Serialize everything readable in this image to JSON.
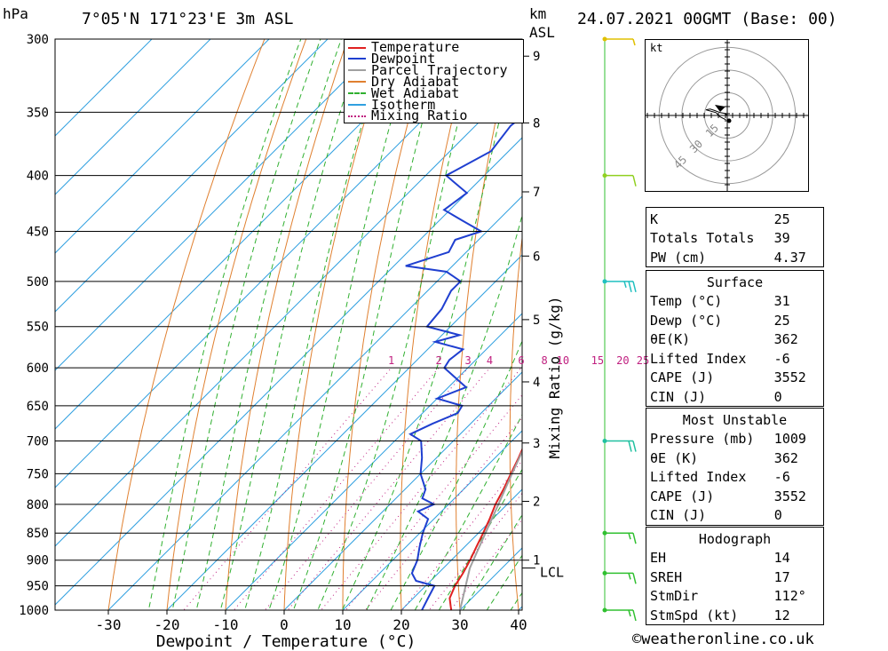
{
  "header": {
    "location": "7°05'N  171°23'E  3m  ASL",
    "pressure_unit": "hPa",
    "km_label": "km",
    "asl_label": "ASL",
    "datetime": "24.07.2021  00GMT  (Base: 00)"
  },
  "chart_data": {
    "type": "line",
    "title": "",
    "xlabel": "Dewpoint / Temperature (°C)",
    "ylabel": "hPa",
    "right_ylabel": "Mixing Ratio (g/kg)",
    "x_ticks": [
      -30,
      -20,
      -10,
      0,
      10,
      20,
      30,
      40
    ],
    "pressure_levels": [
      300,
      350,
      400,
      450,
      500,
      550,
      600,
      650,
      700,
      750,
      800,
      850,
      900,
      950,
      1000
    ],
    "xlim": [
      -40,
      40
    ],
    "ylim_hpa": [
      1000,
      300
    ],
    "y_scale": "log-pressure",
    "skew": "45-degree",
    "km_levels": [
      {
        "km": "1",
        "p": 900
      },
      {
        "km": "2",
        "p": 795
      },
      {
        "km": "3",
        "p": 703
      },
      {
        "km": "4",
        "p": 618
      },
      {
        "km": "5",
        "p": 542
      },
      {
        "km": "6",
        "p": 474
      },
      {
        "km": "7",
        "p": 414
      },
      {
        "km": "8",
        "p": 358
      },
      {
        "km": "9",
        "p": 311
      }
    ],
    "lcl": {
      "label": "LCL",
      "p": 915
    },
    "mixing_ratio_labels": [
      "1",
      "2",
      "3",
      "4",
      "6",
      "8",
      "10",
      "15",
      "20",
      "25"
    ],
    "mixing_ratio_values": [
      1,
      2,
      3,
      4,
      6,
      8,
      10,
      15,
      20,
      25
    ],
    "legend": {
      "placement": "top-right",
      "entries": [
        {
          "name": "Temperature",
          "color": "#e02020",
          "style": "solid"
        },
        {
          "name": "Dewpoint",
          "color": "#1f3fd0",
          "style": "solid"
        },
        {
          "name": "Parcel Trajectory",
          "color": "#a0a0a0",
          "style": "solid"
        },
        {
          "name": "Dry Adiabat",
          "color": "#e08030",
          "style": "solid"
        },
        {
          "name": "Wet Adiabat",
          "color": "#30b030",
          "style": "dashed"
        },
        {
          "name": "Isotherm",
          "color": "#30a0e0",
          "style": "solid"
        },
        {
          "name": "Mixing Ratio",
          "color": "#c02080",
          "style": "dotted"
        }
      ]
    },
    "series": [
      {
        "name": "Temperature",
        "color": "#e02020",
        "points": [
          [
            1008,
            30.5
          ],
          [
            1000,
            28.5
          ],
          [
            975,
            26.2
          ],
          [
            950,
            25
          ],
          [
            925,
            24.2
          ],
          [
            900,
            23.2
          ],
          [
            875,
            22
          ],
          [
            850,
            20.8
          ],
          [
            825,
            19.5
          ],
          [
            800,
            18
          ],
          [
            775,
            16.8
          ],
          [
            750,
            15.4
          ],
          [
            725,
            14
          ],
          [
            700,
            12.4
          ],
          [
            675,
            10.8
          ],
          [
            650,
            9.3
          ],
          [
            625,
            7.6
          ],
          [
            600,
            5.8
          ],
          [
            575,
            3.8
          ],
          [
            550,
            1.8
          ],
          [
            525,
            -0.6
          ],
          [
            500,
            -3
          ],
          [
            475,
            -5.8
          ],
          [
            450,
            -8.7
          ],
          [
            425,
            -11.8
          ],
          [
            400,
            -15.1
          ],
          [
            375,
            -18.8
          ],
          [
            360,
            -21.4
          ],
          [
            320,
            -27.2
          ],
          [
            300,
            -31
          ]
        ]
      },
      {
        "name": "Dewpoint",
        "color": "#1f3fd0",
        "points": [
          [
            1008,
            24.5
          ],
          [
            1000,
            23.5
          ],
          [
            975,
            22.5
          ],
          [
            950,
            21.5
          ],
          [
            940,
            17.5
          ],
          [
            925,
            15.5
          ],
          [
            900,
            14.2
          ],
          [
            875,
            12.3
          ],
          [
            850,
            10.5
          ],
          [
            825,
            9
          ],
          [
            812,
            6
          ],
          [
            800,
            7.5
          ],
          [
            790,
            4.5
          ],
          [
            775,
            3.5
          ],
          [
            750,
            0
          ],
          [
            725,
            -2.5
          ],
          [
            700,
            -5.5
          ],
          [
            690,
            -8.5
          ],
          [
            675,
            -6.5
          ],
          [
            660,
            -4
          ],
          [
            650,
            -4.5
          ],
          [
            640,
            -10
          ],
          [
            625,
            -7
          ],
          [
            600,
            -14
          ],
          [
            590,
            -14.5
          ],
          [
            577,
            -14
          ],
          [
            568,
            -20
          ],
          [
            560,
            -17
          ],
          [
            550,
            -24
          ],
          [
            530,
            -24.5
          ],
          [
            510,
            -26
          ],
          [
            500,
            -26
          ],
          [
            490,
            -30
          ],
          [
            484,
            -38
          ],
          [
            470,
            -33
          ],
          [
            458,
            -34
          ],
          [
            450,
            -31
          ],
          [
            440,
            -36
          ],
          [
            430,
            -41
          ],
          [
            415,
            -40
          ],
          [
            400,
            -46.5
          ],
          [
            380,
            -43
          ],
          [
            360,
            -44
          ],
          [
            345,
            -43
          ],
          [
            335,
            -34
          ],
          [
            318,
            -38
          ],
          [
            310,
            -46
          ],
          [
            300,
            -42
          ]
        ]
      },
      {
        "name": "Parcel Trajectory",
        "color": "#a0a0a0",
        "points": [
          [
            1008,
            30.5
          ],
          [
            915,
            24.5
          ],
          [
            850,
            21.2
          ],
          [
            800,
            18.5
          ],
          [
            750,
            15.6
          ],
          [
            700,
            12.6
          ],
          [
            650,
            9.4
          ],
          [
            600,
            5.8
          ],
          [
            550,
            1.7
          ],
          [
            500,
            -2.9
          ],
          [
            450,
            -8.3
          ],
          [
            400,
            -14.8
          ],
          [
            370,
            -19.3
          ]
        ]
      }
    ]
  },
  "hodograph": {
    "unit_label": "kt",
    "ring_labels": [
      "15",
      "30",
      "45"
    ],
    "ring_speeds": [
      15,
      30,
      45
    ],
    "trace_kt": [
      [
        0,
        0
      ],
      [
        -2,
        1.5
      ],
      [
        -5,
        2
      ],
      [
        -9,
        3.5
      ],
      [
        -12,
        4.5
      ],
      [
        -15,
        4
      ],
      [
        -8,
        2
      ],
      [
        -5,
        -1
      ],
      [
        -1,
        -3
      ]
    ],
    "storm_kt": [
      0.5,
      -1.5
    ]
  },
  "indices": {
    "rows": [
      {
        "label": "K",
        "value": "25"
      },
      {
        "label": "Totals Totals",
        "value": "39"
      },
      {
        "label": "PW (cm)",
        "value": "4.37"
      }
    ]
  },
  "surface": {
    "title": "Surface",
    "rows": [
      {
        "label": "Temp (°C)",
        "value": "31"
      },
      {
        "label": "Dewp (°C)",
        "value": "25"
      },
      {
        "label": "θE(K)",
        "value": "362"
      },
      {
        "label": "Lifted Index",
        "value": "-6"
      },
      {
        "label": "CAPE (J)",
        "value": "3552"
      },
      {
        "label": "CIN (J)",
        "value": "0"
      }
    ]
  },
  "most_unstable": {
    "title": "Most Unstable",
    "rows": [
      {
        "label": "Pressure (mb)",
        "value": "1009"
      },
      {
        "label": "θE (K)",
        "value": "362"
      },
      {
        "label": "Lifted Index",
        "value": "-6"
      },
      {
        "label": "CAPE (J)",
        "value": "3552"
      },
      {
        "label": "CIN (J)",
        "value": "0"
      }
    ]
  },
  "hodograph_params": {
    "title": "Hodograph",
    "rows": [
      {
        "label": "EH",
        "value": "14"
      },
      {
        "label": "SREH",
        "value": "17"
      },
      {
        "label": "StmDir",
        "value": "112°"
      },
      {
        "label": "StmSpd (kt)",
        "value": "12"
      }
    ]
  },
  "wind_barbs": [
    {
      "p": 300,
      "speed_kt": 5,
      "dir": 260,
      "color": "#e0c000"
    },
    {
      "p": 400,
      "speed_kt": 10,
      "dir": 250,
      "color": "#90d020"
    },
    {
      "p": 500,
      "speed_kt": 25,
      "dir": 260,
      "color": "#20c0c0"
    },
    {
      "p": 700,
      "speed_kt": 20,
      "dir": 265,
      "color": "#20c0a0"
    },
    {
      "p": 850,
      "speed_kt": 15,
      "dir": 265,
      "color": "#30c030"
    },
    {
      "p": 925,
      "speed_kt": 15,
      "dir": 260,
      "color": "#30c030"
    },
    {
      "p": 1000,
      "speed_kt": 15,
      "dir": 250,
      "color": "#30c030"
    }
  ],
  "footer": {
    "copyright_symbol": "©",
    "site": "weatheronline.co.uk"
  }
}
